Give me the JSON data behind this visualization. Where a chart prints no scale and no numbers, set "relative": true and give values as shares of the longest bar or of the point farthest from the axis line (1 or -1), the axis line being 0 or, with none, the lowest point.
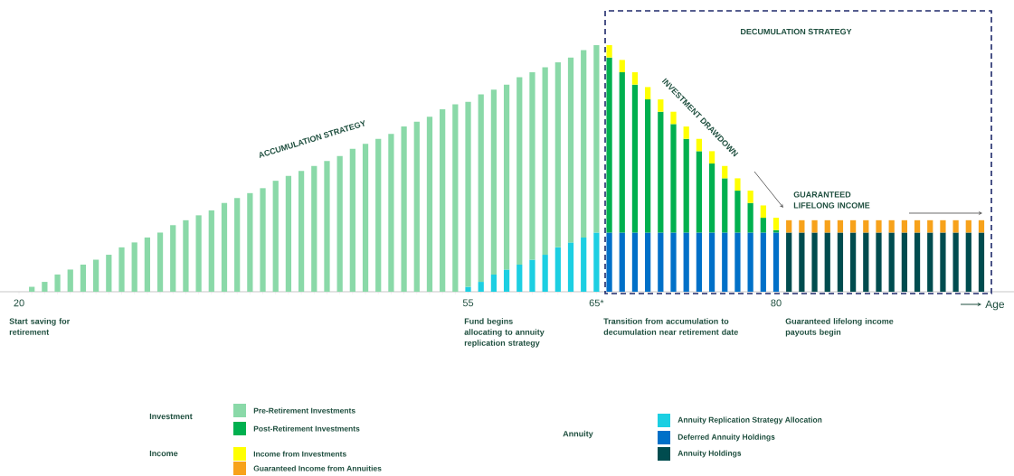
{
  "chart_data": {
    "type": "bar",
    "stacked": true,
    "relative": true,
    "xlabel": "Age",
    "legend": "bottom",
    "categories": [
      "20",
      null,
      null,
      null,
      null,
      null,
      null,
      null,
      null,
      null,
      null,
      null,
      null,
      null,
      null,
      null,
      null,
      null,
      null,
      null,
      null,
      null,
      null,
      null,
      null,
      null,
      null,
      null,
      null,
      null,
      null,
      null,
      null,
      null,
      null,
      "55",
      null,
      null,
      null,
      null,
      null,
      null,
      null,
      null,
      null,
      "65*",
      null,
      null,
      null,
      null,
      null,
      null,
      null,
      null,
      null,
      null,
      null,
      null,
      null,
      "80",
      null,
      null,
      null,
      null,
      null,
      null,
      null,
      null,
      null,
      null,
      null,
      null,
      null,
      null,
      null,
      null
    ],
    "series": [
      {
        "name": "Annuity Replication Strategy Allocation",
        "color": "#1ccfe2",
        "values": [
          null,
          null,
          null,
          null,
          null,
          null,
          null,
          null,
          null,
          null,
          null,
          null,
          null,
          null,
          null,
          null,
          null,
          null,
          null,
          null,
          null,
          null,
          null,
          null,
          null,
          null,
          null,
          null,
          null,
          null,
          null,
          null,
          null,
          null,
          null,
          0.02,
          0.04,
          0.07,
          0.09,
          0.11,
          0.13,
          0.15,
          0.18,
          0.2,
          0.22,
          0.24,
          null,
          null,
          null,
          null,
          null,
          null,
          null,
          null,
          null,
          null,
          null,
          null,
          null,
          null,
          null,
          null,
          null,
          null,
          null,
          null,
          null,
          null,
          null,
          null,
          null,
          null,
          null,
          null,
          null,
          null
        ]
      },
      {
        "name": "Deferred Annuity Holdings",
        "color": "#0070c8",
        "values": [
          null,
          null,
          null,
          null,
          null,
          null,
          null,
          null,
          null,
          null,
          null,
          null,
          null,
          null,
          null,
          null,
          null,
          null,
          null,
          null,
          null,
          null,
          null,
          null,
          null,
          null,
          null,
          null,
          null,
          null,
          null,
          null,
          null,
          null,
          null,
          null,
          null,
          null,
          null,
          null,
          null,
          null,
          null,
          null,
          null,
          null,
          0.24,
          0.24,
          0.24,
          0.24,
          0.24,
          0.24,
          0.24,
          0.24,
          0.24,
          0.24,
          0.24,
          0.24,
          0.24,
          0.24,
          null,
          null,
          null,
          null,
          null,
          null,
          null,
          null,
          null,
          null,
          null,
          null,
          null,
          null,
          null,
          null
        ]
      },
      {
        "name": "Annuity Holdings",
        "color": "#004c4f",
        "values": [
          null,
          null,
          null,
          null,
          null,
          null,
          null,
          null,
          null,
          null,
          null,
          null,
          null,
          null,
          null,
          null,
          null,
          null,
          null,
          null,
          null,
          null,
          null,
          null,
          null,
          null,
          null,
          null,
          null,
          null,
          null,
          null,
          null,
          null,
          null,
          null,
          null,
          null,
          null,
          null,
          null,
          null,
          null,
          null,
          null,
          null,
          null,
          null,
          null,
          null,
          null,
          null,
          null,
          null,
          null,
          null,
          null,
          null,
          null,
          null,
          0.24,
          0.24,
          0.24,
          0.24,
          0.24,
          0.24,
          0.24,
          0.24,
          0.24,
          0.24,
          0.24,
          0.24,
          0.24,
          0.24,
          0.24,
          0.24
        ]
      },
      {
        "name": "Pre-Retirement Investments",
        "color": "#8ad9a8",
        "values": [
          null,
          0.02,
          0.04,
          0.07,
          0.09,
          0.11,
          0.13,
          0.15,
          0.18,
          0.2,
          0.22,
          0.24,
          0.27,
          0.29,
          0.31,
          0.33,
          0.36,
          0.38,
          0.4,
          0.42,
          0.45,
          0.47,
          0.49,
          0.51,
          0.53,
          0.55,
          0.58,
          0.6,
          0.62,
          0.64,
          0.67,
          0.69,
          0.71,
          0.74,
          0.76,
          0.75,
          0.76,
          0.75,
          0.75,
          0.76,
          0.76,
          0.76,
          0.75,
          0.75,
          0.76,
          0.76,
          null,
          null,
          null,
          null,
          null,
          null,
          null,
          null,
          null,
          null,
          null,
          null,
          null,
          null,
          null,
          null,
          null,
          null,
          null,
          null,
          null,
          null,
          null,
          null,
          null,
          null,
          null,
          null,
          null,
          null
        ]
      },
      {
        "name": "Post-Retirement Investments",
        "color": "#00b04f",
        "values": [
          null,
          null,
          null,
          null,
          null,
          null,
          null,
          null,
          null,
          null,
          null,
          null,
          null,
          null,
          null,
          null,
          null,
          null,
          null,
          null,
          null,
          null,
          null,
          null,
          null,
          null,
          null,
          null,
          null,
          null,
          null,
          null,
          null,
          null,
          null,
          null,
          null,
          null,
          null,
          null,
          null,
          null,
          null,
          null,
          null,
          null,
          0.71,
          0.65,
          0.6,
          0.54,
          0.49,
          0.44,
          0.38,
          0.33,
          0.28,
          0.22,
          0.17,
          0.12,
          0.06,
          0.01,
          null,
          null,
          null,
          null,
          null,
          null,
          null,
          null,
          null,
          null,
          null,
          null,
          null,
          null,
          null,
          null
        ]
      },
      {
        "name": "Income from Investments",
        "color": "#ffff00",
        "values": [
          null,
          null,
          null,
          null,
          null,
          null,
          null,
          null,
          null,
          null,
          null,
          null,
          null,
          null,
          null,
          null,
          null,
          null,
          null,
          null,
          null,
          null,
          null,
          null,
          null,
          null,
          null,
          null,
          null,
          null,
          null,
          null,
          null,
          null,
          null,
          null,
          null,
          null,
          null,
          null,
          null,
          null,
          null,
          null,
          null,
          null,
          0.05,
          0.05,
          0.05,
          0.05,
          0.05,
          0.05,
          0.05,
          0.05,
          0.05,
          0.05,
          0.05,
          0.05,
          0.05,
          0.05,
          null,
          null,
          null,
          null,
          null,
          null,
          null,
          null,
          null,
          null,
          null,
          null,
          null,
          null,
          null,
          null
        ]
      },
      {
        "name": "Guaranteed Income from Annuities",
        "color": "#f7a21b",
        "values": [
          null,
          null,
          null,
          null,
          null,
          null,
          null,
          null,
          null,
          null,
          null,
          null,
          null,
          null,
          null,
          null,
          null,
          null,
          null,
          null,
          null,
          null,
          null,
          null,
          null,
          null,
          null,
          null,
          null,
          null,
          null,
          null,
          null,
          null,
          null,
          null,
          null,
          null,
          null,
          null,
          null,
          null,
          null,
          null,
          null,
          null,
          null,
          null,
          null,
          null,
          null,
          null,
          null,
          null,
          null,
          null,
          null,
          null,
          null,
          null,
          0.05,
          0.05,
          0.05,
          0.05,
          0.05,
          0.05,
          0.05,
          0.05,
          0.05,
          0.05,
          0.05,
          0.05,
          0.05,
          0.05,
          0.05,
          0.05
        ]
      }
    ],
    "annotations": [
      "ACCUMULATION STRATEGY",
      "DECUMULATION STRATEGY",
      "INVESTMENT DRAWDOWN",
      "GUARANTEED LIFELONG INCOME",
      "Start saving for retirement",
      "Fund begins allocating to annuity replication strategy",
      "Transition from accumulation to decumulation near retirement date",
      "Guaranteed lifelong income payouts begin",
      "Investment",
      "Income",
      "Annuity"
    ]
  }
}
